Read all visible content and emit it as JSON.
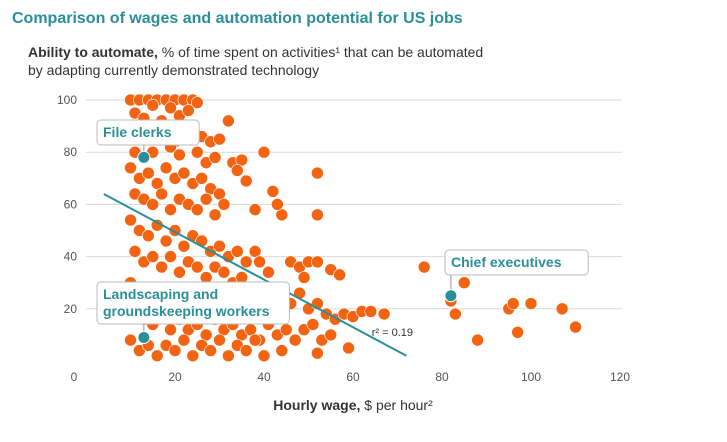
{
  "chart_data": {
    "type": "scatter",
    "title": "Comparison of wages and automation potential for US jobs",
    "subtitle": {
      "bold": "Ability to automate,",
      "rest": "% of time spent on activities¹ that can be automated",
      "line2": "by adapting currently demonstrated technology"
    },
    "x_label": {
      "bold": "Hourly wage,",
      "rest": "$ per hour²"
    },
    "xlim": [
      0,
      120
    ],
    "xticks": [
      0,
      20,
      40,
      60,
      80,
      100,
      120
    ],
    "ylim": [
      0,
      100
    ],
    "yticks": [
      20,
      40,
      60,
      80,
      100
    ],
    "grid": true,
    "color": "#f26412",
    "highlight_color": "#2a8f99",
    "x": [
      10,
      12,
      14,
      16,
      18,
      20,
      22,
      24,
      15,
      19,
      11,
      13,
      17,
      21,
      23,
      25,
      10,
      12,
      14,
      16,
      18,
      20,
      22,
      24,
      26,
      28,
      30,
      19,
      11,
      15,
      21,
      25,
      27,
      32,
      33,
      35,
      34,
      36,
      40,
      29,
      10,
      12,
      14,
      16,
      18,
      20,
      22,
      24,
      26,
      28,
      30,
      11,
      13,
      15,
      17,
      19,
      21,
      23,
      25,
      27,
      29,
      31,
      38,
      42,
      44,
      43,
      52,
      52,
      10,
      12,
      14,
      16,
      18,
      20,
      22,
      24,
      26,
      28,
      30,
      32,
      34,
      36,
      38,
      11,
      13,
      15,
      17,
      19,
      21,
      23,
      25,
      27,
      29,
      31,
      33,
      35,
      39,
      41,
      46,
      48,
      50,
      52,
      55,
      57,
      49,
      10,
      12,
      14,
      16,
      18,
      20,
      22,
      24,
      26,
      28,
      30,
      32,
      34,
      36,
      38,
      40,
      42,
      44,
      46,
      48,
      50,
      52,
      54,
      56,
      58,
      60,
      62,
      64,
      67,
      11,
      13,
      15,
      17,
      19,
      21,
      23,
      25,
      27,
      29,
      31,
      33,
      35,
      37,
      39,
      41,
      43,
      45,
      47,
      49,
      51,
      53,
      10,
      12,
      14,
      16,
      18,
      20,
      22,
      24,
      26,
      28,
      30,
      32,
      34,
      36,
      38,
      40,
      44,
      52,
      59,
      55,
      76,
      82,
      83,
      85,
      88,
      95,
      96,
      97,
      100,
      107,
      110
    ],
    "values": [
      100,
      100,
      100,
      100,
      100,
      100,
      100,
      100,
      98,
      97,
      95,
      93,
      92,
      94,
      96,
      99,
      88,
      85,
      90,
      86,
      88,
      84,
      87,
      85,
      86,
      84,
      85,
      82,
      80,
      80,
      79,
      80,
      76,
      92,
      76,
      77,
      73,
      69,
      80,
      78,
      74,
      70,
      72,
      68,
      74,
      70,
      72,
      68,
      70,
      66,
      64,
      64,
      62,
      60,
      64,
      58,
      62,
      60,
      58,
      62,
      56,
      60,
      58,
      65,
      56,
      60,
      72,
      56,
      54,
      50,
      48,
      52,
      46,
      50,
      44,
      48,
      46,
      42,
      44,
      40,
      42,
      38,
      42,
      42,
      38,
      40,
      36,
      40,
      34,
      38,
      36,
      32,
      36,
      34,
      30,
      32,
      38,
      34,
      38,
      36,
      38,
      38,
      35,
      33,
      32,
      30,
      26,
      28,
      24,
      26,
      22,
      28,
      24,
      20,
      24,
      26,
      22,
      24,
      20,
      26,
      22,
      28,
      24,
      22,
      26,
      20,
      22,
      18,
      16,
      18,
      17,
      19,
      19,
      18,
      18,
      16,
      14,
      18,
      12,
      16,
      12,
      14,
      10,
      16,
      12,
      14,
      10,
      12,
      8,
      14,
      10,
      12,
      8,
      12,
      14,
      8,
      8,
      4,
      6,
      2,
      6,
      4,
      8,
      2,
      6,
      4,
      8,
      2,
      6,
      4,
      8,
      2,
      4,
      3,
      5,
      10,
      36,
      23,
      18,
      30,
      8,
      20,
      22,
      11,
      22,
      20,
      13
    ],
    "annotations": [
      {
        "label": [
          "File clerks"
        ],
        "x": 13,
        "y": 78
      },
      {
        "label": [
          "Chief executives"
        ],
        "x": 82,
        "y": 25
      },
      {
        "label": [
          "Landscaping and",
          "groundskeeping workers"
        ],
        "x": 13,
        "y": 9
      }
    ],
    "trend": {
      "x": [
        4,
        72
      ],
      "y": [
        64,
        2
      ],
      "color": "#2a8f99",
      "label": "r² = 0.19"
    }
  }
}
